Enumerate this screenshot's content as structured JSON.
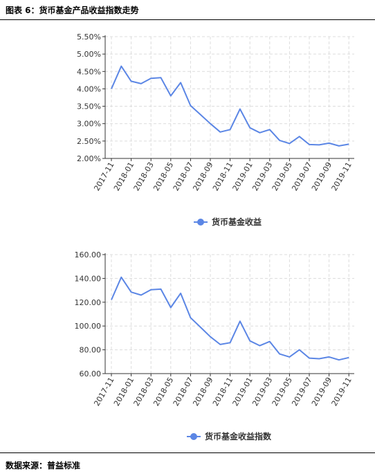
{
  "header": {
    "title": "图表 6：货币基金产品收益指数走势"
  },
  "footer": {
    "source": "数据来源：普益标准"
  },
  "colors": {
    "line": "#5b86e5",
    "grid": "#dcdcdc",
    "axis": "#333333"
  },
  "chart_data": [
    {
      "type": "line",
      "x_ticks": [
        "2017-11",
        "2018-01",
        "2018-03",
        "2018-05",
        "2018-07",
        "2018-09",
        "2018-11",
        "2019-01",
        "2019-03",
        "2019-05",
        "2019-07",
        "2019-09",
        "2019-11"
      ],
      "y_ticks": [
        "2.00%",
        "2.50%",
        "3.00%",
        "3.50%",
        "4.00%",
        "4.50%",
        "5.00%",
        "5.50%"
      ],
      "ylim": [
        2.0,
        5.5
      ],
      "grid": true,
      "legend_position": "bottom-center",
      "series": [
        {
          "name": "货币基金收益",
          "values": [
            4.0,
            4.65,
            4.22,
            4.15,
            4.3,
            4.32,
            3.8,
            4.18,
            3.52,
            3.26,
            3.0,
            2.76,
            2.83,
            3.42,
            2.88,
            2.74,
            2.83,
            2.52,
            2.43,
            2.63,
            2.4,
            2.39,
            2.44,
            2.36,
            2.41
          ]
        }
      ]
    },
    {
      "type": "line",
      "x_ticks": [
        "2017-11",
        "2018-01",
        "2018-03",
        "2018-05",
        "2018-07",
        "2018-09",
        "2018-11",
        "2019-01",
        "2019-03",
        "2019-05",
        "2019-07",
        "2019-09",
        "2019-11"
      ],
      "y_ticks": [
        "60.00",
        "80.00",
        "100.00",
        "120.00",
        "140.00",
        "160.00"
      ],
      "ylim": [
        60,
        160
      ],
      "grid": true,
      "legend_position": "bottom-center",
      "series": [
        {
          "name": "货币基金收益指数",
          "values": [
            122.0,
            141.0,
            128.5,
            126.0,
            130.5,
            131.0,
            115.5,
            127.5,
            107.0,
            99.0,
            91.0,
            84.5,
            86.0,
            104.0,
            87.5,
            83.5,
            87.0,
            76.5,
            74.0,
            80.0,
            73.0,
            72.5,
            74.0,
            71.5,
            73.5
          ]
        }
      ]
    }
  ]
}
